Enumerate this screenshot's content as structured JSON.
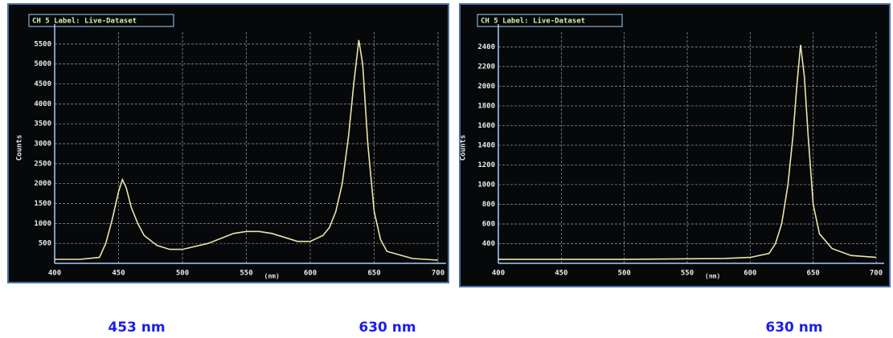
{
  "chart_data": [
    {
      "type": "line",
      "title": "CH 5 Label: Live-Dataset",
      "y_label": "Counts",
      "x_label": "(nm)",
      "x": [
        400,
        420,
        435,
        440,
        445,
        450,
        453,
        456,
        460,
        465,
        470,
        480,
        490,
        500,
        520,
        540,
        550,
        560,
        570,
        580,
        590,
        600,
        610,
        615,
        620,
        625,
        630,
        634,
        638,
        641,
        645,
        650,
        655,
        660,
        680,
        700
      ],
      "series": [
        {
          "color": "#ece4a8",
          "values": [
            100,
            100,
            150,
            500,
            1100,
            1800,
            2100,
            1900,
            1400,
            1000,
            700,
            450,
            350,
            350,
            500,
            750,
            800,
            800,
            750,
            650,
            550,
            550,
            700,
            900,
            1300,
            2000,
            3200,
            4500,
            5600,
            5000,
            3000,
            1300,
            600,
            300,
            120,
            80
          ]
        }
      ],
      "xlim": [
        400,
        700
      ],
      "xticks": [
        400,
        450,
        500,
        550,
        600,
        650,
        700
      ],
      "ylim": [
        0,
        5800
      ],
      "yticks": [
        500,
        1000,
        1500,
        2000,
        2500,
        3000,
        3500,
        4000,
        4500,
        5000,
        5500
      ],
      "grid": true,
      "captions": [
        "453 nm",
        "630 nm"
      ]
    },
    {
      "type": "line",
      "title": "CH 5 Label: Live-Dataset",
      "y_label": "Counts",
      "x_label": "(nm)",
      "x": [
        400,
        500,
        580,
        600,
        615,
        620,
        625,
        630,
        634,
        637,
        640,
        643,
        646,
        650,
        655,
        665,
        680,
        700
      ],
      "series": [
        {
          "color": "#ece4a8",
          "values": [
            240,
            240,
            250,
            260,
            300,
            400,
            600,
            1000,
            1500,
            2000,
            2420,
            2100,
            1500,
            800,
            500,
            350,
            280,
            260
          ]
        }
      ],
      "xlim": [
        400,
        700
      ],
      "xticks": [
        400,
        450,
        500,
        550,
        600,
        650,
        700
      ],
      "ylim": [
        200,
        2550
      ],
      "yticks": [
        400,
        600,
        800,
        1000,
        1200,
        1400,
        1600,
        1800,
        2000,
        2200,
        2400
      ],
      "grid": true,
      "captions": [
        "630 nm"
      ]
    }
  ]
}
